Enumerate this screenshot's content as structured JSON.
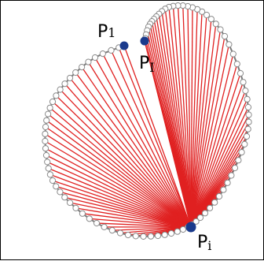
{
  "labels": {
    "p1": {
      "main": "P",
      "sub": "1"
    },
    "pI": {
      "main": "P",
      "sub": "I"
    },
    "pi": {
      "main": "P",
      "sub": "i"
    }
  },
  "colors": {
    "chord": "#e02020",
    "outline": "#7a7a7a",
    "vertex_fill": "#ffffff",
    "vertex_stroke": "#8a8a8a",
    "key_point": "#1a3a8c",
    "frame": "#000000"
  },
  "icons": [
    "polygon-outline",
    "fan-chord-lines",
    "vertex-marker",
    "key-point-marker"
  ]
}
